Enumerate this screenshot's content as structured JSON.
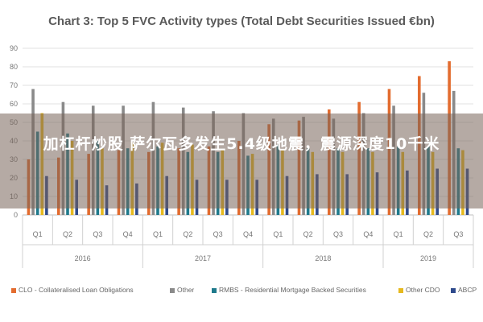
{
  "chart_data": {
    "type": "bar",
    "title": "Chart 3: Top 5 FVC Activity types (Total Debt Securities Issued €bn)",
    "xlabel": "",
    "ylabel": "",
    "ylim": [
      0,
      90
    ],
    "yticks": [
      0,
      10,
      20,
      30,
      40,
      50,
      60,
      70,
      80,
      90
    ],
    "grid": true,
    "legend_position": "bottom",
    "categories": [
      "Q1",
      "Q2",
      "Q3",
      "Q4",
      "Q1",
      "Q2",
      "Q3",
      "Q4",
      "Q1",
      "Q2",
      "Q3",
      "Q4",
      "Q1",
      "Q2",
      "Q3"
    ],
    "years": [
      {
        "label": "2016",
        "count": 4
      },
      {
        "label": "2017",
        "count": 4
      },
      {
        "label": "2018",
        "count": 4
      },
      {
        "label": "2019",
        "count": 3
      }
    ],
    "series": [
      {
        "name": "CLO - Collateralised Loan Obligations",
        "color": "#e36c2f",
        "values": [
          30,
          31,
          33,
          35,
          34,
          36,
          37,
          40,
          49,
          51,
          57,
          61,
          68,
          75,
          83
        ]
      },
      {
        "name": "Other",
        "color": "#8a8a8a",
        "values": [
          68,
          61,
          59,
          59,
          61,
          58,
          56,
          55,
          52,
          53,
          52,
          55,
          59,
          66,
          67
        ]
      },
      {
        "name": "RMBS - Residential Mortgage Backed Securities",
        "color": "#1f7a8c",
        "values": [
          45,
          44,
          40,
          36,
          37,
          34,
          34,
          32,
          38,
          36,
          36,
          36,
          37,
          37,
          36
        ]
      },
      {
        "name": "Other CDO",
        "color": "#e6b91e",
        "values": [
          55,
          40,
          36,
          39,
          39,
          38,
          35,
          33,
          35,
          34,
          34,
          34,
          34,
          34,
          35
        ]
      },
      {
        "name": "ABCP",
        "color": "#2e4a8c",
        "values": [
          21,
          19,
          16,
          17,
          21,
          19,
          19,
          19,
          21,
          22,
          22,
          23,
          24,
          25,
          25
        ]
      }
    ]
  },
  "overlay": {
    "text": "加杠杆炒股 萨尔瓦多发生5.4级地震，震源深度10千米"
  }
}
